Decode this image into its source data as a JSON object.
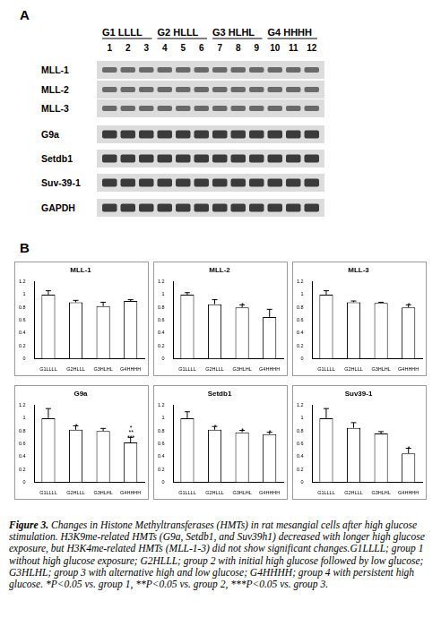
{
  "panel_labels": [
    "A",
    "B"
  ],
  "gel": {
    "groups": [
      "G1 LLLL",
      "G2 HLLL",
      "G3 HLHL",
      "G4 HHHH"
    ],
    "lanes": [
      1,
      2,
      3,
      4,
      5,
      6,
      7,
      8,
      9,
      10,
      11,
      12
    ],
    "rows": [
      "MLL-1",
      "MLL-2",
      "MLL-3",
      "G9a",
      "Setdb1",
      "Suv-39-1",
      "GAPDH"
    ]
  },
  "chart_data": [
    {
      "type": "bar",
      "title": "MLL-1",
      "categories": [
        "G1LLLL",
        "G2HLLL",
        "G3HLHL",
        "G4HHHH"
      ],
      "values": [
        1.0,
        0.88,
        0.82,
        0.9
      ],
      "errors": [
        0.06,
        0.03,
        0.06,
        0.02
      ],
      "color": "#ffffff",
      "ylim": [
        0,
        1.2
      ],
      "yticks": [
        0,
        0.2,
        0.4,
        0.6,
        0.8,
        1,
        1.2
      ],
      "grid": false,
      "annotations": []
    },
    {
      "type": "bar",
      "title": "MLL-2",
      "categories": [
        "G1LLLL",
        "G2HLLL",
        "G3HLHL",
        "G4HHHH"
      ],
      "values": [
        1.0,
        0.85,
        0.8,
        0.65
      ],
      "errors": [
        0.03,
        0.07,
        0.04,
        0.12
      ],
      "color": "#ffffff",
      "ylim": [
        0,
        1.2
      ],
      "yticks": [
        0,
        0.2,
        0.4,
        0.6,
        0.8,
        1,
        1.2
      ],
      "grid": false,
      "annotations": [
        {
          "category": "G3HLHL",
          "text": "*"
        }
      ]
    },
    {
      "type": "bar",
      "title": "MLL-3",
      "categories": [
        "G1LLLL",
        "G2HLLL",
        "G3HLHL",
        "G4HHHH"
      ],
      "values": [
        1.0,
        0.88,
        0.87,
        0.8
      ],
      "errors": [
        0.06,
        0.02,
        0.01,
        0.04
      ],
      "color": "#ffffff",
      "ylim": [
        0,
        1.2
      ],
      "yticks": [
        0,
        0.2,
        0.4,
        0.6,
        0.8,
        1,
        1.2
      ],
      "grid": false,
      "annotations": [
        {
          "category": "G4HHHH",
          "text": "*"
        }
      ]
    },
    {
      "type": "bar",
      "title": "G9a",
      "categories": [
        "G1LLLL",
        "G2HLLL",
        "G3HLHL",
        "G4HHHH"
      ],
      "values": [
        1.0,
        0.82,
        0.8,
        0.62
      ],
      "errors": [
        0.15,
        0.06,
        0.04,
        0.08
      ],
      "color": "#ffffff",
      "ylim": [
        0,
        1.2
      ],
      "yticks": [
        0,
        0.2,
        0.4,
        0.6,
        0.8,
        1,
        1.2
      ],
      "grid": false,
      "annotations": [
        {
          "category": "G2HLLL",
          "text": "*"
        },
        {
          "category": "G4HHHH",
          "text": "*"
        },
        {
          "category": "G4HHHH",
          "text": "**"
        },
        {
          "category": "G4HHHH",
          "text": "***"
        }
      ]
    },
    {
      "type": "bar",
      "title": "Setdb1",
      "categories": [
        "G1LLLL",
        "G2HLLL",
        "G3HLHL",
        "G4HHHH"
      ],
      "values": [
        1.0,
        0.82,
        0.78,
        0.75
      ],
      "errors": [
        0.1,
        0.05,
        0.03,
        0.03
      ],
      "color": "#ffffff",
      "ylim": [
        0,
        1.2
      ],
      "yticks": [
        0,
        0.2,
        0.4,
        0.6,
        0.8,
        1,
        1.2
      ],
      "grid": false,
      "annotations": [
        {
          "category": "G2HLLL",
          "text": "*"
        },
        {
          "category": "G3HLHL",
          "text": "*"
        },
        {
          "category": "G4HHHH",
          "text": "*"
        }
      ]
    },
    {
      "type": "bar",
      "title": "Suv39-1",
      "categories": [
        "G1LLLL",
        "G2HLLL",
        "G3HLHL",
        "G4HHHH"
      ],
      "values": [
        1.0,
        0.85,
        0.76,
        0.45
      ],
      "errors": [
        0.15,
        0.08,
        0.03,
        0.08
      ],
      "color": "#ffffff",
      "ylim": [
        0,
        1.2
      ],
      "yticks": [
        0,
        0.2,
        0.4,
        0.6,
        0.8,
        1,
        1.2
      ],
      "grid": false,
      "annotations": [
        {
          "category": "G4HHHH",
          "text": "*"
        }
      ]
    }
  ],
  "caption": {
    "label": "Figure 3.",
    "text": "Changes in Histone Methyltransferases (HMTs) in rat mesangial cells after high glucose stimulation. H3K9me-related HMTs (G9a, Setdb1, and Suv39h1) decreased with longer high glucose exposure, but H3K4me-related HMTs (MLL-1-3) did not show significant changes.G1LLLL; group 1 without high glucose exposure; G2HLLL; group 2 with initial high glucose followed by low glucose; G3HLHL; group 3 with alternative high and low glucose; G4HHHH; group 4 with persistent high glucose. *P<0.05 vs. group 1, **P<0.05 vs. group 2, ***P<0.05 vs. group 3."
  }
}
